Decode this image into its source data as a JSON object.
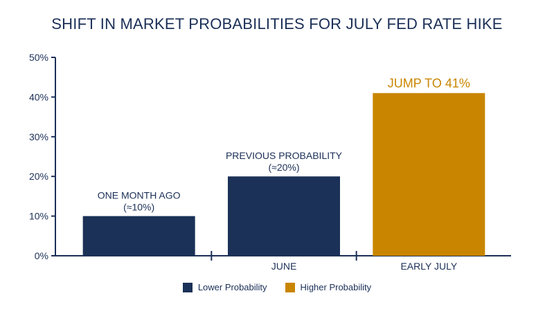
{
  "chart_data": {
    "type": "bar",
    "title": "SHIFT IN MARKET PROBABILITIES FOR JULY FED RATE HIKE",
    "xlabel": "",
    "ylabel": "",
    "ylim": [
      0,
      50
    ],
    "y_ticks": [
      "0%",
      "10%",
      "20%",
      "30%",
      "40%",
      "50%"
    ],
    "categories": [
      "",
      "JUNE",
      "EARLY JULY"
    ],
    "values": [
      10,
      20,
      41
    ],
    "bar_groups": [
      "Lower Probability",
      "Lower Probability",
      "Higher Probability"
    ],
    "bar_labels": [
      [
        "ONE MONTH AGO",
        "(≈10%)"
      ],
      [
        "PREVIOUS PROBABILITY",
        "(≈20%)"
      ],
      [
        "JUMP TO 41%"
      ]
    ],
    "grid": false,
    "legend": {
      "placement": "bottom-center",
      "items": [
        {
          "label": "Lower Probability",
          "color": "#1b3157"
        },
        {
          "label": "Higher Probability",
          "color": "#c98500"
        }
      ]
    },
    "colors": {
      "lower": "#1b3157",
      "higher": "#c98500",
      "axis": "#1b2f57"
    }
  }
}
